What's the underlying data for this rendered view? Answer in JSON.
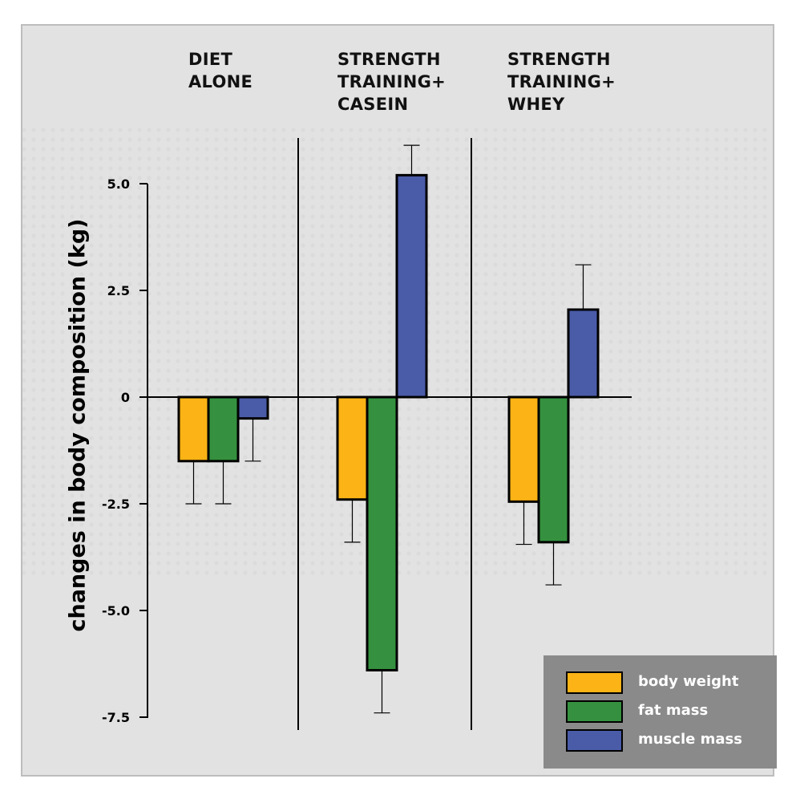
{
  "chart_data": {
    "type": "bar",
    "groups": [
      {
        "title_lines": [
          "DIET",
          "ALONE"
        ]
      },
      {
        "title_lines": [
          "STRENGTH",
          "TRAINING+",
          "CASEIN"
        ]
      },
      {
        "title_lines": [
          "STRENGTH",
          "TRAINING+",
          "WHEY"
        ]
      }
    ],
    "series": [
      {
        "name": "body weight",
        "color": "#fbb315",
        "values": [
          -1.5,
          -2.4,
          -2.45
        ],
        "errors": [
          1.0,
          1.0,
          1.0
        ]
      },
      {
        "name": "fat mass",
        "color": "#35913f",
        "values": [
          -1.5,
          -6.4,
          -3.4
        ],
        "errors": [
          1.0,
          1.0,
          1.0
        ]
      },
      {
        "name": "muscle mass",
        "color": "#4a5ba8",
        "values": [
          -0.5,
          5.2,
          2.05
        ],
        "errors": [
          1.0,
          0.7,
          1.05
        ]
      }
    ],
    "ylabel": "changes in body composition (kg)",
    "yticks": [
      5.0,
      2.5,
      0,
      -2.5,
      -5.0,
      -7.5
    ],
    "ytick_labels": [
      "5.0",
      "2.5",
      "0",
      "-2.5",
      "-5.0",
      "-7.5"
    ],
    "ylim": [
      -7.5,
      5.0
    ],
    "legend_position": "bottom-right",
    "grid": false
  }
}
